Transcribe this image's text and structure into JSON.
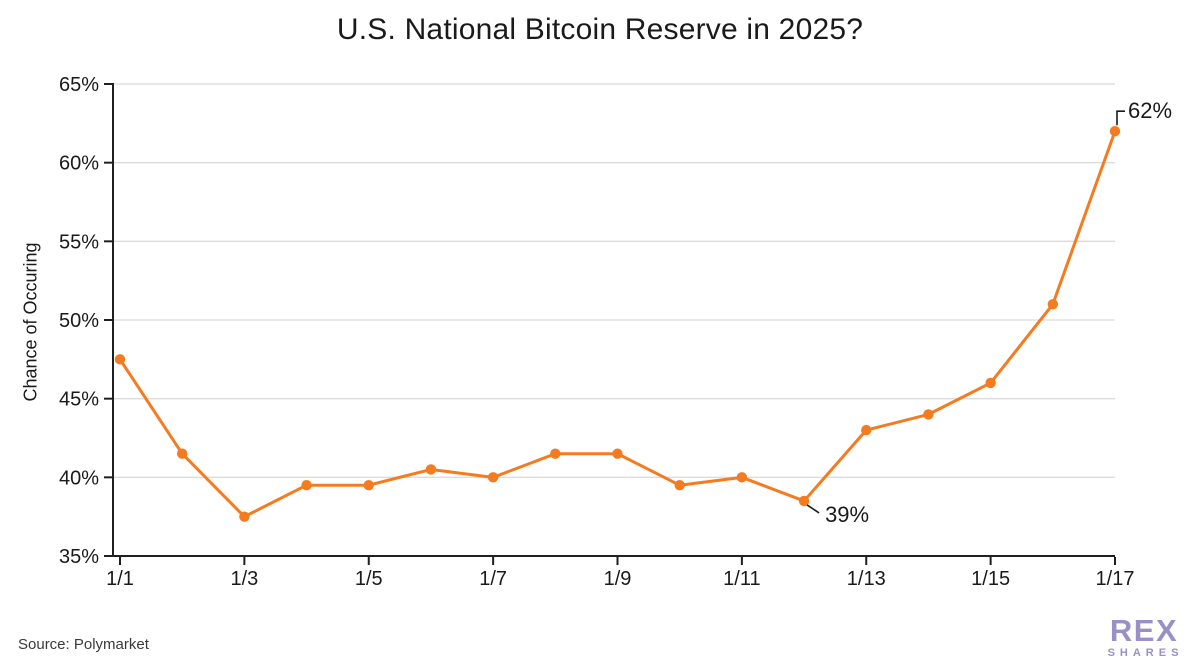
{
  "title": "U.S. National Bitcoin Reserve in 2025?",
  "source": "Source: Polymarket",
  "logo": {
    "line1": "REX",
    "line2": "SHARES",
    "color": "#9b8fc7"
  },
  "colors": {
    "line": "#f57b20",
    "grid": "#dcdcdc",
    "axis": "#1f1f1f",
    "text": "#1a1a1a"
  },
  "chart_data": {
    "type": "line",
    "title": "U.S. National Bitcoin Reserve in 2025?",
    "ylabel": "Chance of Occuring",
    "xlabel": "",
    "x": [
      "1/1",
      "1/2",
      "1/3",
      "1/4",
      "1/5",
      "1/6",
      "1/7",
      "1/8",
      "1/9",
      "1/10",
      "1/11",
      "1/12",
      "1/13",
      "1/14",
      "1/15",
      "1/16",
      "1/17"
    ],
    "values": [
      47.5,
      41.5,
      37.5,
      39.5,
      39.5,
      40.5,
      40,
      41.5,
      41.5,
      39.5,
      40,
      38.5,
      43,
      44,
      46,
      51,
      62
    ],
    "ylim": [
      35,
      65
    ],
    "y_ticks": [
      35,
      40,
      45,
      50,
      55,
      60,
      65
    ],
    "y_tick_labels": [
      "35%",
      "40%",
      "45%",
      "50%",
      "55%",
      "60%",
      "65%"
    ],
    "x_tick_labels": [
      "1/1",
      "1/3",
      "1/5",
      "1/7",
      "1/9",
      "1/11",
      "1/13",
      "1/15",
      "1/17"
    ],
    "grid": "horizontal",
    "legend": "none",
    "annotations": [
      {
        "text": "39%",
        "x": "1/12",
        "value": 38.5
      },
      {
        "text": "62%",
        "x": "1/17",
        "value": 62
      }
    ]
  }
}
